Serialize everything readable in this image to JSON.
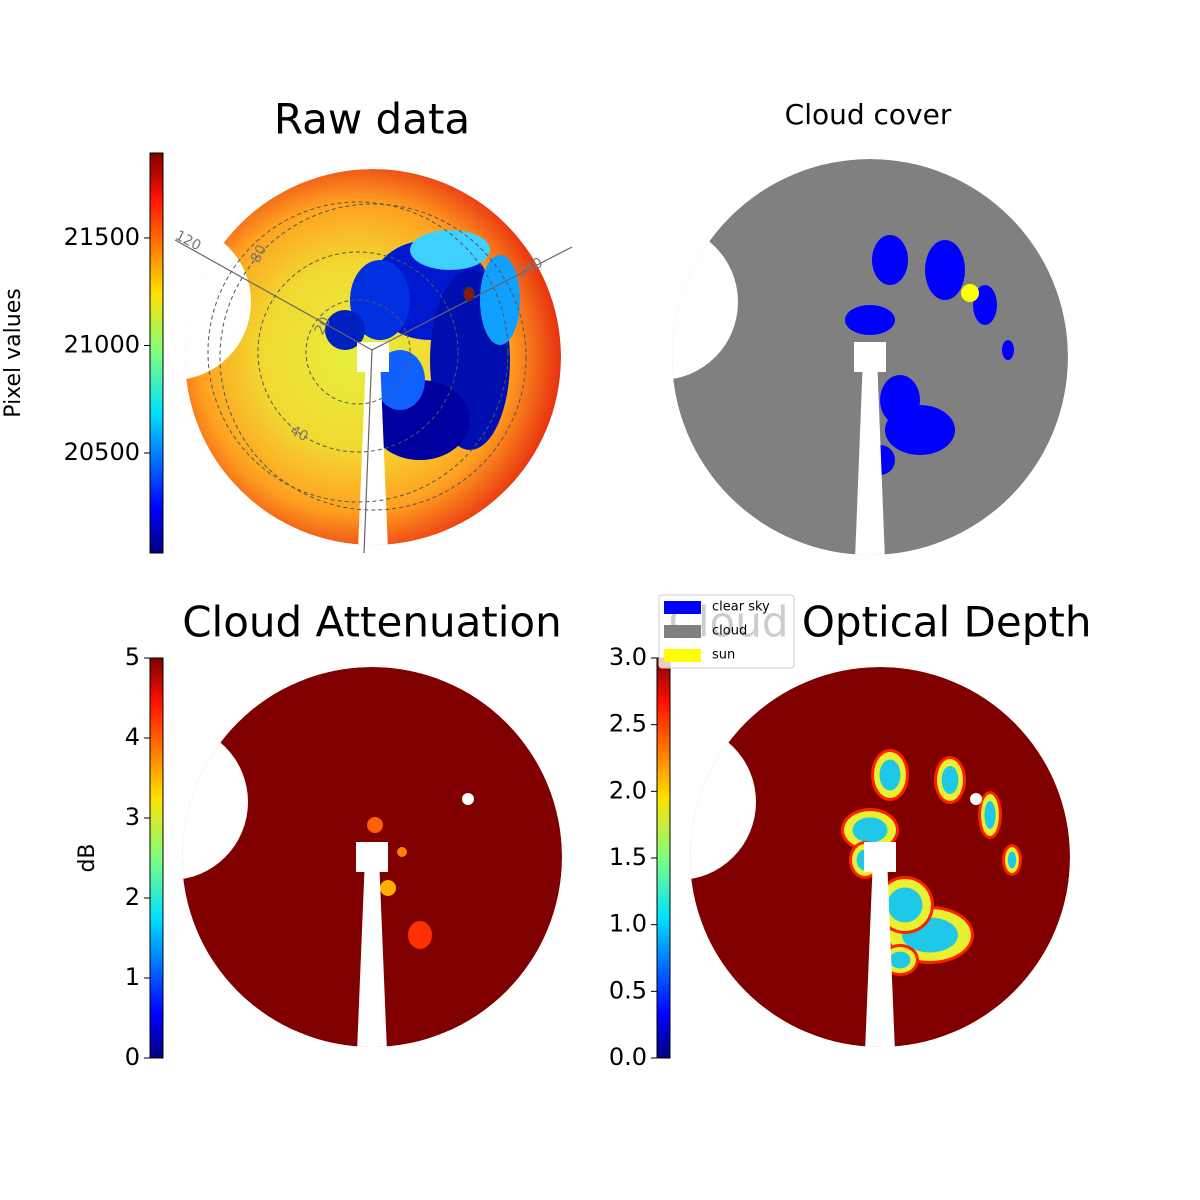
{
  "chart_data": [
    {
      "type": "heatmap",
      "title": "Raw data",
      "colorbar": {
        "label": "Pixel values",
        "cmap": "jet",
        "lim": [
          20035,
          21895
        ],
        "ticks": [
          20500,
          21000,
          21500
        ]
      },
      "polar_labels": [
        120,
        80,
        20,
        240,
        40
      ]
    },
    {
      "type": "categorical",
      "title": "Cloud cover",
      "legend": {
        "entries": [
          {
            "name": "clear sky",
            "color": "#0000ff"
          },
          {
            "name": "cloud",
            "color": "#808080"
          },
          {
            "name": "sun",
            "color": "#ffff00"
          }
        ]
      }
    },
    {
      "type": "heatmap",
      "title": "Cloud Attenuation",
      "colorbar": {
        "label": "dB",
        "cmap": "jet",
        "lim": [
          0,
          5
        ],
        "ticks": [
          0,
          1,
          2,
          3,
          4,
          5
        ]
      }
    },
    {
      "type": "heatmap",
      "title": "Cloud Optical Depth",
      "colorbar": {
        "cmap": "jet",
        "lim": [
          0,
          3
        ],
        "ticks": [
          {
            "value": 0,
            "label": "0.0"
          },
          {
            "value": 0.5,
            "label": "0.5"
          },
          {
            "value": 1,
            "label": "1.0"
          },
          {
            "value": 1.5,
            "label": "1.5"
          },
          {
            "value": 2,
            "label": "2.0"
          },
          {
            "value": 2.5,
            "label": "2.5"
          },
          {
            "value": 3,
            "label": "3.0"
          }
        ]
      }
    }
  ]
}
